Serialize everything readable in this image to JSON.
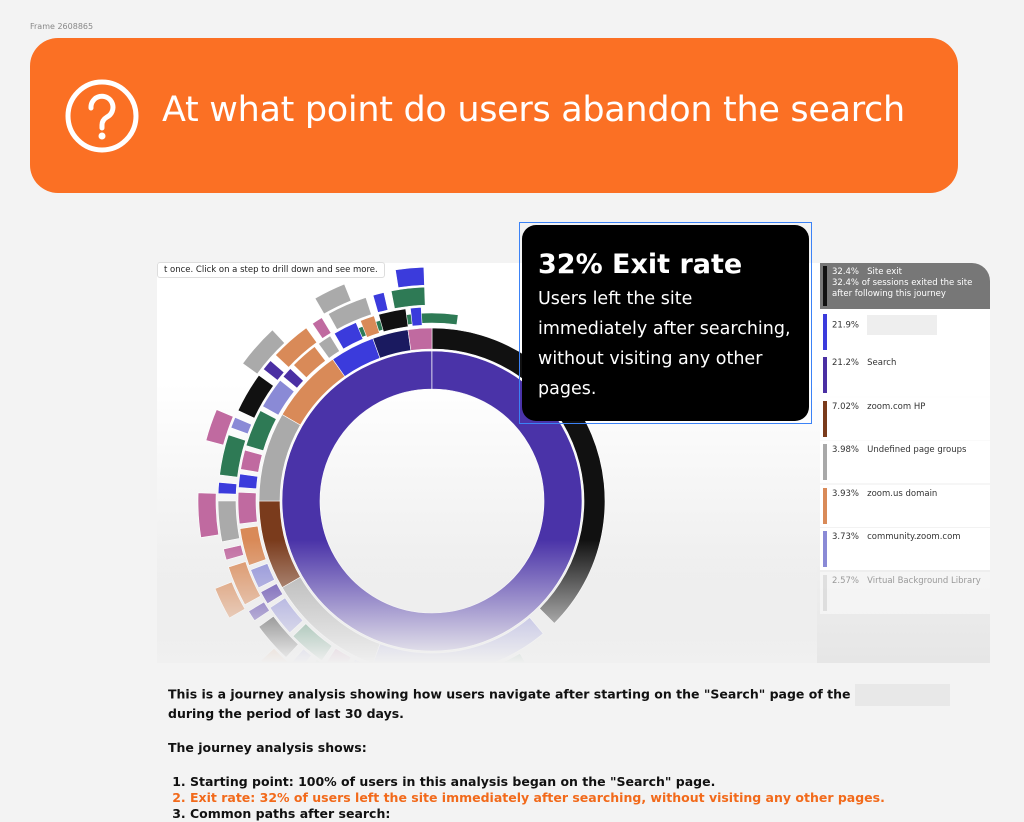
{
  "frame_label": "Frame 2608865",
  "header": {
    "title": "At what point do users abandon the search"
  },
  "chart_hint": "t once. Click on a step to drill down and see more.",
  "callout": {
    "title": "32% Exit rate",
    "body": "Users left the site immediately after searching, without visiting any other pages."
  },
  "legend": [
    {
      "percent": "32.4%",
      "label": "Site exit",
      "detail": "32.4% of sessions exited the site after following this journey",
      "color": "#111111"
    },
    {
      "percent": "21.9%",
      "color": "#3b3bdc"
    },
    {
      "percent": "21.2%",
      "label": "Search",
      "color": "#4a2fa3"
    },
    {
      "percent": "7.02%",
      "label": "zoom.com HP",
      "color": "#7a3b1c"
    },
    {
      "percent": "3.98%",
      "label": "Undefined page groups",
      "color": "#a9a9a9"
    },
    {
      "percent": "3.93%",
      "label": "zoom.us domain",
      "color": "#d98a58"
    },
    {
      "percent": "3.73%",
      "label": "community.zoom.com",
      "color": "#8a8ad6"
    },
    {
      "percent": "2.57%",
      "label": "Virtual Background Library",
      "color": "#cfcfcf"
    }
  ],
  "description": {
    "intro_before": "This is a journey analysis showing how users navigate after starting on the \"Search\" page of the",
    "intro_after": "during the period of last 30 days.",
    "heading": "The journey analysis shows:",
    "items": [
      "Starting point: 100% of users in this analysis began on the \"Search\" page.",
      "Exit rate: 32% of users left the site immediately after searching, without visiting any other pages.",
      "Common paths after search:"
    ]
  }
}
